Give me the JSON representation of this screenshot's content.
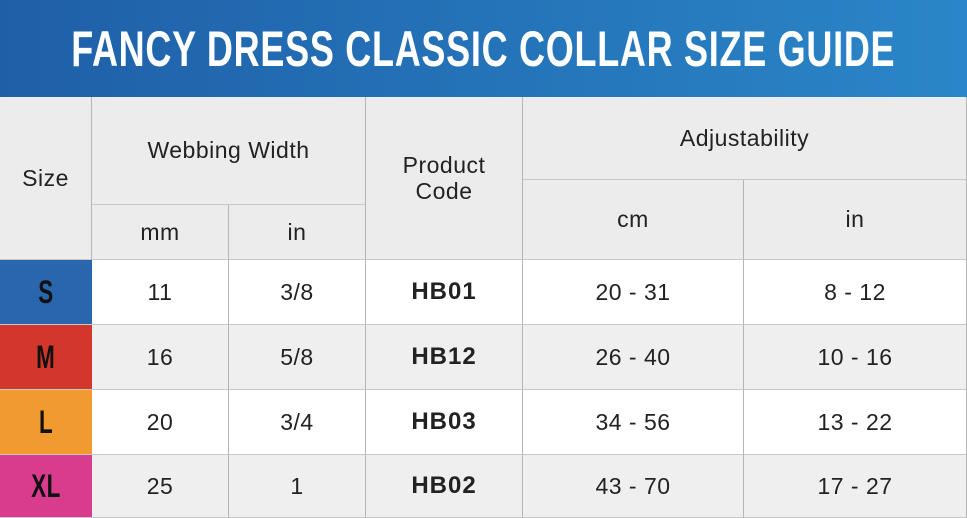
{
  "title": "FANCY DRESS CLASSIC COLLAR SIZE GUIDE",
  "table": {
    "header": {
      "size": "Size",
      "webbing_width": "Webbing Width",
      "webbing_mm": "mm",
      "webbing_in": "in",
      "product_code": "Product Code",
      "adjustability": "Adjustability",
      "adjust_cm": "cm",
      "adjust_in": "in"
    },
    "rows": [
      [
        "S",
        "11",
        "3/8",
        "HB01",
        "20 - 31",
        "8 - 12"
      ],
      [
        "M",
        "16",
        "5/8",
        "HB12",
        "26 - 40",
        "10 - 16"
      ],
      [
        "L",
        "20",
        "3/4",
        "HB03",
        "34 - 56",
        "13 - 22"
      ],
      [
        "XL",
        "25",
        "1",
        "HB02",
        "43 - 70",
        "17 - 27"
      ]
    ]
  }
}
